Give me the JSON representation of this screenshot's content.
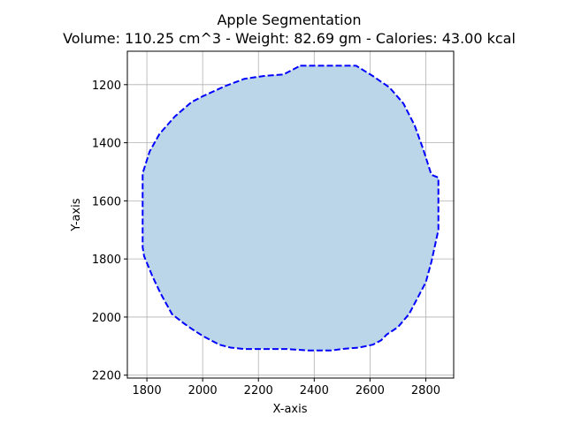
{
  "chart_data": {
    "type": "area",
    "title": "Apple Segmentation",
    "subtitle": "Volume: 110.25 cm^3 - Weight: 82.69 gm - Calories: 43.00 kcal",
    "xlabel": "X-axis",
    "ylabel": "Y-axis",
    "xlim": [
      1730,
      2900
    ],
    "ylim": [
      2210,
      1085
    ],
    "y_inverted": true,
    "grid": true,
    "x_ticks": [
      1800,
      2000,
      2200,
      2400,
      2600,
      2800
    ],
    "y_ticks": [
      1200,
      1400,
      1600,
      1800,
      2000,
      2200
    ],
    "series": [
      {
        "fill_color": "#bcd6e9",
        "line_color": "#0000ff",
        "line_style": "dashed",
        "x": [
          2350,
          2550,
          2610,
          2670,
          2720,
          2760,
          2790,
          2820,
          2845,
          2845,
          2820,
          2800,
          2770,
          2740,
          2700,
          2660,
          2640,
          2610,
          2560,
          2500,
          2460,
          2420,
          2380,
          2300,
          2200,
          2150,
          2100,
          2060,
          2000,
          1960,
          1930,
          1890,
          1850,
          1820,
          1790,
          1785,
          1785,
          1790,
          1810,
          1845,
          1900,
          1960,
          2000,
          2080,
          2150,
          2220,
          2290
        ],
        "y": [
          1135,
          1135,
          1170,
          1210,
          1265,
          1340,
          1420,
          1510,
          1520,
          1700,
          1810,
          1880,
          1935,
          1990,
          2035,
          2060,
          2080,
          2095,
          2105,
          2110,
          2115,
          2115,
          2115,
          2110,
          2110,
          2110,
          2105,
          2095,
          2065,
          2040,
          2020,
          1990,
          1920,
          1860,
          1790,
          1760,
          1505,
          1490,
          1430,
          1370,
          1310,
          1260,
          1240,
          1205,
          1180,
          1170,
          1165
        ]
      }
    ]
  }
}
